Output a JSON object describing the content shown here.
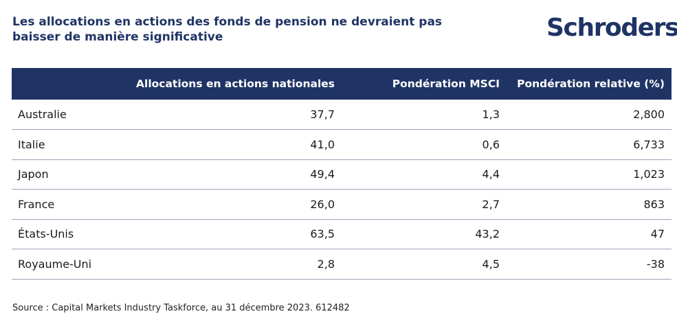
{
  "title": "Les allocations en actions des fonds de pension ne devraient pas baisser de manière significative",
  "logo": "Schroders",
  "table": {
    "headers": [
      "",
      "Allocations en actions nationales",
      "Pondération MSCI",
      "Pondération relative (%)"
    ],
    "rows": [
      [
        "Australie",
        "37,7",
        "1,3",
        "2,800"
      ],
      [
        "Italie",
        "41,0",
        "0,6",
        "6,733"
      ],
      [
        "Japon",
        "49,4",
        "4,4",
        "1,023"
      ],
      [
        "France",
        "26,0",
        "2,7",
        "863"
      ],
      [
        "États-Unis",
        "63,5",
        "43,2",
        "47"
      ],
      [
        "Royaume-Uni",
        "2,8",
        "4,5",
        "-38"
      ]
    ]
  },
  "source": "Source : Capital Markets Industry Taskforce, au 31 décembre 2023. 612482",
  "colors": {
    "brand": "#1f3465",
    "header_text": "#ffffff",
    "row_divider": "#9aa3b5"
  }
}
